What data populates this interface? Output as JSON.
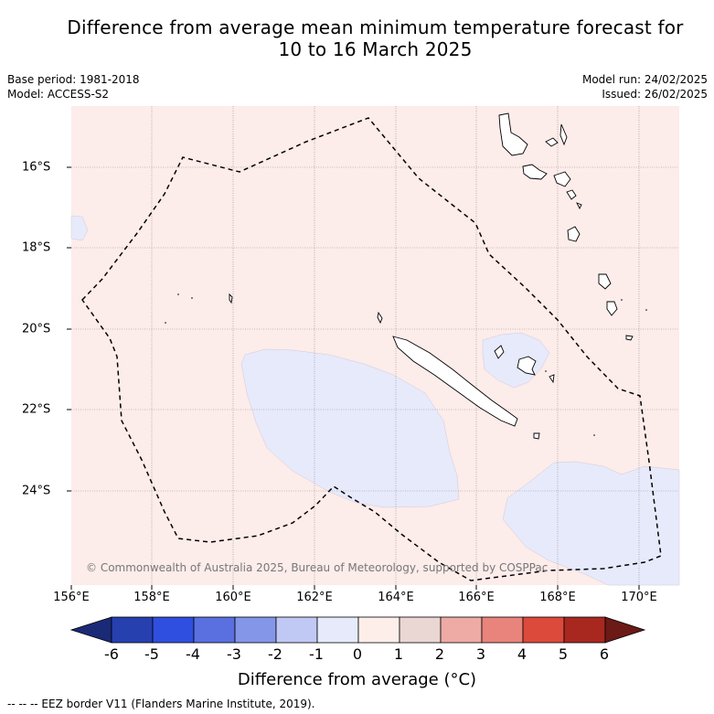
{
  "title_line1": "Difference from average mean minimum temperature forecast for",
  "title_line2": "10 to 16 March 2025",
  "base_period": "Base period: 1981-2018",
  "model": "Model: ACCESS-S2",
  "model_run": "Model run: 24/02/2025",
  "issued": "Issued: 26/02/2025",
  "credit": "© Commonwealth of Australia 2025, Bureau of Meteorology, supported by COSPPac",
  "legend_note": "--  --  -- EEZ border V11 (Flanders Marine Institute, 2019).",
  "x_ticks": [
    "156°E",
    "158°E",
    "160°E",
    "162°E",
    "164°E",
    "166°E",
    "168°E",
    "170°E"
  ],
  "y_ticks": [
    "16°S",
    "18°S",
    "20°S",
    "22°S",
    "24°S"
  ],
  "colorbar": {
    "label": "Difference from average (°C)",
    "ticks": [
      "-6",
      "-5",
      "-4",
      "-3",
      "-2",
      "-1",
      "0",
      "1",
      "2",
      "3",
      "4",
      "5",
      "6"
    ],
    "colors": [
      "#1b2a77",
      "#2740b0",
      "#2f4fe0",
      "#5a70e0",
      "#8396e8",
      "#c0c8f4",
      "#e6eafb",
      "#fdeeea",
      "#ead6d2",
      "#eeaaa4",
      "#e8847c",
      "#dc4a3c",
      "#a82820",
      "#6b1a16"
    ]
  },
  "colors": {
    "background_anomaly": "#fcecea",
    "cool_anomaly": "#e6eafb"
  }
}
